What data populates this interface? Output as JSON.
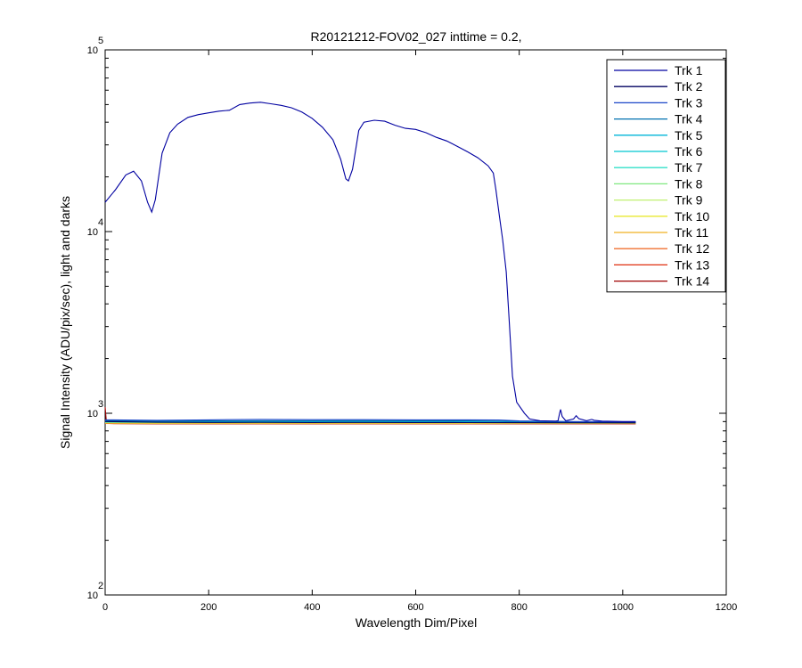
{
  "chart_data": {
    "type": "line",
    "title": "R20121212-FOV02_027 inttime = 0.2,",
    "xlabel": "Wavelength Dim/Pixel",
    "ylabel": "Signal Intensity (ADU/pix/sec), light and darks",
    "xlim": [
      0,
      1200
    ],
    "ylim": [
      100,
      100000
    ],
    "yscale": "log",
    "x_ticks": [
      0,
      200,
      400,
      600,
      800,
      1000,
      1200
    ],
    "y_ticks": [
      {
        "base": "10",
        "exp": "2",
        "value": 100
      },
      {
        "base": "10",
        "exp": "3",
        "value": 1000
      },
      {
        "base": "10",
        "exp": "4",
        "value": 10000
      },
      {
        "base": "10",
        "exp": "5",
        "value": 100000
      }
    ],
    "grid": false,
    "legend_position": "top-right",
    "series": [
      {
        "name": "Trk 1",
        "color": "#0000a0",
        "points": [
          [
            0,
            14500
          ],
          [
            20,
            17000
          ],
          [
            40,
            20500
          ],
          [
            55,
            21500
          ],
          [
            70,
            19000
          ],
          [
            82,
            14500
          ],
          [
            90,
            12800
          ],
          [
            97,
            15000
          ],
          [
            110,
            27000
          ],
          [
            125,
            35000
          ],
          [
            140,
            39000
          ],
          [
            160,
            42500
          ],
          [
            180,
            44000
          ],
          [
            200,
            45000
          ],
          [
            220,
            46000
          ],
          [
            240,
            46500
          ],
          [
            260,
            50000
          ],
          [
            280,
            51000
          ],
          [
            300,
            51500
          ],
          [
            320,
            50500
          ],
          [
            340,
            49500
          ],
          [
            360,
            48000
          ],
          [
            380,
            45500
          ],
          [
            400,
            42000
          ],
          [
            420,
            37500
          ],
          [
            440,
            32000
          ],
          [
            455,
            25000
          ],
          [
            465,
            19500
          ],
          [
            470,
            19000
          ],
          [
            478,
            22000
          ],
          [
            490,
            36000
          ],
          [
            500,
            40000
          ],
          [
            520,
            41000
          ],
          [
            540,
            40500
          ],
          [
            560,
            38500
          ],
          [
            580,
            37000
          ],
          [
            600,
            36500
          ],
          [
            620,
            35000
          ],
          [
            640,
            33000
          ],
          [
            660,
            31500
          ],
          [
            680,
            29500
          ],
          [
            700,
            27500
          ],
          [
            720,
            25500
          ],
          [
            740,
            23000
          ],
          [
            750,
            21000
          ],
          [
            755,
            17000
          ],
          [
            762,
            12000
          ],
          [
            768,
            9000
          ],
          [
            775,
            6000
          ],
          [
            780,
            3500
          ],
          [
            787,
            1600
          ],
          [
            795,
            1150
          ],
          [
            810,
            1000
          ],
          [
            820,
            930
          ],
          [
            840,
            910
          ],
          [
            870,
            905
          ],
          [
            875,
            910
          ],
          [
            878,
            1000
          ],
          [
            880,
            1050
          ],
          [
            883,
            960
          ],
          [
            890,
            910
          ],
          [
            905,
            930
          ],
          [
            910,
            970
          ],
          [
            915,
            935
          ],
          [
            930,
            910
          ],
          [
            940,
            925
          ],
          [
            945,
            915
          ],
          [
            960,
            905
          ],
          [
            1000,
            900
          ],
          [
            1025,
            900
          ]
        ]
      },
      {
        "name": "Trk 2",
        "color": "#000060",
        "points": [
          [
            0,
            900
          ],
          [
            100,
            892
          ],
          [
            200,
            890
          ],
          [
            300,
            891
          ],
          [
            400,
            889
          ],
          [
            500,
            890
          ],
          [
            600,
            889
          ],
          [
            700,
            888
          ],
          [
            800,
            887
          ],
          [
            900,
            886
          ],
          [
            1025,
            885
          ]
        ]
      },
      {
        "name": "Trk 3",
        "color": "#1a46c8",
        "points": [
          [
            0,
            920
          ],
          [
            100,
            915
          ],
          [
            200,
            920
          ],
          [
            300,
            925
          ],
          [
            400,
            922
          ],
          [
            500,
            922
          ],
          [
            600,
            920
          ],
          [
            700,
            920
          ],
          [
            760,
            918
          ],
          [
            800,
            908
          ],
          [
            900,
            900
          ],
          [
            1025,
            896
          ]
        ]
      },
      {
        "name": "Trk 4",
        "color": "#0070b0",
        "points": [
          [
            0,
            910
          ],
          [
            100,
            906
          ],
          [
            200,
            908
          ],
          [
            300,
            910
          ],
          [
            400,
            910
          ],
          [
            500,
            911
          ],
          [
            600,
            909
          ],
          [
            700,
            908
          ],
          [
            800,
            902
          ],
          [
            900,
            898
          ],
          [
            1025,
            894
          ]
        ]
      },
      {
        "name": "Trk 5",
        "color": "#00b4d8",
        "points": [
          [
            0,
            905
          ],
          [
            100,
            901
          ],
          [
            200,
            902
          ],
          [
            300,
            903
          ],
          [
            400,
            902
          ],
          [
            500,
            903
          ],
          [
            600,
            902
          ],
          [
            700,
            901
          ],
          [
            800,
            897
          ],
          [
            900,
            894
          ],
          [
            1025,
            892
          ]
        ]
      },
      {
        "name": "Trk 6",
        "color": "#00c8d0",
        "points": [
          [
            0,
            900
          ],
          [
            100,
            897
          ],
          [
            200,
            898
          ],
          [
            300,
            899
          ],
          [
            400,
            898
          ],
          [
            500,
            899
          ],
          [
            600,
            898
          ],
          [
            700,
            897
          ],
          [
            800,
            894
          ],
          [
            900,
            892
          ],
          [
            1025,
            890
          ]
        ]
      },
      {
        "name": "Trk 7",
        "color": "#30e0c8",
        "points": [
          [
            0,
            896
          ],
          [
            100,
            893
          ],
          [
            200,
            894
          ],
          [
            300,
            894
          ],
          [
            400,
            894
          ],
          [
            500,
            894
          ],
          [
            600,
            893
          ],
          [
            700,
            892
          ],
          [
            800,
            891
          ],
          [
            900,
            889
          ],
          [
            1025,
            888
          ]
        ]
      },
      {
        "name": "Trk 8",
        "color": "#80e880",
        "points": [
          [
            0,
            892
          ],
          [
            100,
            889
          ],
          [
            200,
            890
          ],
          [
            300,
            890
          ],
          [
            400,
            890
          ],
          [
            500,
            890
          ],
          [
            600,
            889
          ],
          [
            700,
            889
          ],
          [
            800,
            888
          ],
          [
            900,
            887
          ],
          [
            1025,
            886
          ]
        ]
      },
      {
        "name": "Trk 9",
        "color": "#c0f070",
        "points": [
          [
            0,
            889
          ],
          [
            100,
            886
          ],
          [
            200,
            887
          ],
          [
            300,
            887
          ],
          [
            400,
            887
          ],
          [
            500,
            887
          ],
          [
            600,
            886
          ],
          [
            700,
            886
          ],
          [
            800,
            885
          ],
          [
            900,
            884
          ],
          [
            1025,
            884
          ]
        ]
      },
      {
        "name": "Trk 10",
        "color": "#e8e830",
        "points": [
          [
            0,
            886
          ],
          [
            100,
            883
          ],
          [
            200,
            884
          ],
          [
            300,
            884
          ],
          [
            400,
            884
          ],
          [
            500,
            884
          ],
          [
            600,
            883
          ],
          [
            700,
            883
          ],
          [
            800,
            883
          ],
          [
            900,
            882
          ],
          [
            1025,
            882
          ]
        ]
      },
      {
        "name": "Trk 11",
        "color": "#f0b020",
        "points": [
          [
            0,
            883
          ],
          [
            100,
            880
          ],
          [
            200,
            881
          ],
          [
            300,
            881
          ],
          [
            400,
            881
          ],
          [
            500,
            881
          ],
          [
            600,
            880
          ],
          [
            700,
            880
          ],
          [
            800,
            880
          ],
          [
            900,
            880
          ],
          [
            1025,
            880
          ]
        ]
      },
      {
        "name": "Trk 12",
        "color": "#f07030",
        "points": [
          [
            0,
            880
          ],
          [
            100,
            878
          ],
          [
            200,
            878
          ],
          [
            300,
            878
          ],
          [
            400,
            878
          ],
          [
            500,
            878
          ],
          [
            600,
            878
          ],
          [
            700,
            878
          ],
          [
            800,
            878
          ],
          [
            900,
            878
          ],
          [
            1025,
            878
          ]
        ]
      },
      {
        "name": "Trk 13",
        "color": "#e03010",
        "points": [
          [
            0,
            878
          ],
          [
            100,
            876
          ],
          [
            200,
            876
          ],
          [
            300,
            876
          ],
          [
            400,
            876
          ],
          [
            500,
            876
          ],
          [
            600,
            876
          ],
          [
            700,
            876
          ],
          [
            800,
            876
          ],
          [
            900,
            876
          ],
          [
            1025,
            876
          ]
        ]
      },
      {
        "name": "Trk 14",
        "color": "#a00000",
        "points": [
          [
            0,
            1080
          ],
          [
            2,
            920
          ],
          [
            5,
            890
          ],
          [
            10,
            878
          ],
          [
            100,
            875
          ],
          [
            200,
            875
          ],
          [
            300,
            875
          ],
          [
            400,
            875
          ],
          [
            500,
            875
          ],
          [
            600,
            875
          ],
          [
            700,
            875
          ],
          [
            800,
            875
          ],
          [
            900,
            875
          ],
          [
            1025,
            875
          ]
        ]
      }
    ]
  }
}
